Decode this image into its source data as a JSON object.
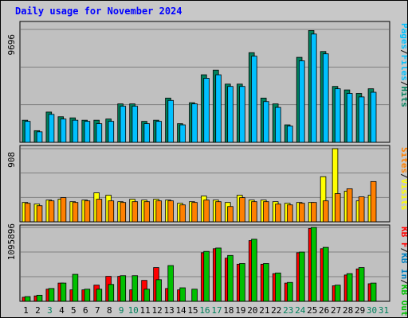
{
  "title": "Daily usage for November 2024",
  "colors": {
    "hits": "#00805c",
    "files": "#00c0ff",
    "pages": "#00c0ff",
    "visits": "#ffff00",
    "sites": "#ff8000",
    "kb_in": "#0080c0",
    "kb_out": "#00c000",
    "kb_f": "#ff0000",
    "sep": "#000000",
    "weekend": "#00805c",
    "weekday": "#000000"
  },
  "chart_data": [
    {
      "type": "bar",
      "name": "hits-files-pages",
      "y_max_label": "9696",
      "ylim": [
        0,
        9696
      ],
      "legend": [
        "Pages",
        "/",
        "Files",
        "/",
        "Hits"
      ],
      "categories": [
        "1",
        "2",
        "3",
        "4",
        "5",
        "6",
        "7",
        "8",
        "9",
        "10",
        "11",
        "12",
        "13",
        "14",
        "15",
        "16",
        "17",
        "18",
        "19",
        "20",
        "21",
        "22",
        "23",
        "24",
        "25",
        "26",
        "27",
        "28",
        "29",
        "30",
        "31"
      ],
      "series": [
        {
          "name": "Hits",
          "values": [
            1900,
            1000,
            2600,
            2200,
            2100,
            1900,
            1900,
            2000,
            3300,
            3300,
            1800,
            1900,
            3800,
            1600,
            3400,
            5800,
            6200,
            5000,
            5000,
            7700,
            3800,
            3300,
            1500,
            7300,
            9600,
            7800,
            4800,
            4500,
            4200,
            4600,
            0
          ]
        },
        {
          "name": "Files",
          "values": [
            1800,
            900,
            2400,
            2000,
            1900,
            1800,
            1600,
            1800,
            3100,
            3100,
            1600,
            1800,
            3600,
            1500,
            3300,
            5500,
            5800,
            4800,
            4800,
            7400,
            3500,
            3000,
            1400,
            7000,
            9300,
            7600,
            4600,
            4200,
            3900,
            4300,
            0
          ]
        }
      ]
    },
    {
      "type": "bar",
      "name": "visits-sites",
      "y_max_label": "908",
      "ylim": [
        0,
        908
      ],
      "legend": [
        "Sites",
        "/",
        "Visits"
      ],
      "categories": [
        "1",
        "2",
        "3",
        "4",
        "5",
        "6",
        "7",
        "8",
        "9",
        "10",
        "11",
        "12",
        "13",
        "14",
        "15",
        "16",
        "17",
        "18",
        "19",
        "20",
        "21",
        "22",
        "23",
        "24",
        "25",
        "26",
        "27",
        "28",
        "29",
        "30",
        "31"
      ],
      "series": [
        {
          "name": "Visits",
          "values": [
            240,
            220,
            270,
            280,
            250,
            270,
            360,
            330,
            250,
            280,
            270,
            280,
            270,
            230,
            250,
            320,
            270,
            240,
            330,
            270,
            270,
            250,
            230,
            240,
            240,
            560,
            908,
            380,
            260,
            330,
            0
          ]
        },
        {
          "name": "Sites",
          "values": [
            230,
            200,
            260,
            300,
            240,
            260,
            280,
            260,
            240,
            250,
            250,
            260,
            260,
            210,
            240,
            270,
            250,
            190,
            300,
            250,
            250,
            220,
            210,
            230,
            240,
            260,
            350,
            410,
            310,
            500,
            0
          ]
        }
      ]
    },
    {
      "type": "bar",
      "name": "kbytes",
      "y_max_label": "1095896",
      "ylim": [
        0,
        1095896
      ],
      "legend": [
        "KB F",
        "/",
        "KB In",
        "/",
        "KB Out"
      ],
      "categories": [
        "1",
        "2",
        "3",
        "4",
        "5",
        "6",
        "7",
        "8",
        "9",
        "10",
        "11",
        "12",
        "13",
        "14",
        "15",
        "16",
        "17",
        "18",
        "19",
        "20",
        "21",
        "22",
        "23",
        "24",
        "25",
        "26",
        "27",
        "28",
        "29",
        "30",
        "31"
      ],
      "series": [
        {
          "name": "KB F",
          "values": [
            60000,
            80000,
            180000,
            270000,
            170000,
            170000,
            240000,
            370000,
            370000,
            170000,
            310000,
            500000,
            190000,
            170000,
            0,
            720000,
            780000,
            640000,
            550000,
            900000,
            550000,
            410000,
            270000,
            720000,
            1080000,
            780000,
            230000,
            390000,
            480000,
            260000,
            0
          ]
        },
        {
          "name": "KB Out",
          "values": [
            70000,
            90000,
            190000,
            270000,
            400000,
            180000,
            180000,
            250000,
            380000,
            380000,
            180000,
            320000,
            530000,
            200000,
            180000,
            740000,
            790000,
            680000,
            560000,
            920000,
            560000,
            420000,
            280000,
            730000,
            1095896,
            800000,
            240000,
            410000,
            500000,
            270000,
            0
          ]
        }
      ]
    }
  ],
  "days": [
    {
      "label": "1",
      "weekend": false
    },
    {
      "label": "2",
      "weekend": false
    },
    {
      "label": "3",
      "weekend": true
    },
    {
      "label": "4",
      "weekend": false
    },
    {
      "label": "5",
      "weekend": false
    },
    {
      "label": "6",
      "weekend": false
    },
    {
      "label": "7",
      "weekend": false
    },
    {
      "label": "8",
      "weekend": false
    },
    {
      "label": "9",
      "weekend": true
    },
    {
      "label": "10",
      "weekend": true
    },
    {
      "label": "11",
      "weekend": false
    },
    {
      "label": "12",
      "weekend": false
    },
    {
      "label": "13",
      "weekend": false
    },
    {
      "label": "14",
      "weekend": false
    },
    {
      "label": "15",
      "weekend": false
    },
    {
      "label": "16",
      "weekend": true
    },
    {
      "label": "17",
      "weekend": true
    },
    {
      "label": "18",
      "weekend": false
    },
    {
      "label": "19",
      "weekend": false
    },
    {
      "label": "20",
      "weekend": false
    },
    {
      "label": "21",
      "weekend": false
    },
    {
      "label": "22",
      "weekend": false
    },
    {
      "label": "23",
      "weekend": true
    },
    {
      "label": "24",
      "weekend": true
    },
    {
      "label": "25",
      "weekend": false
    },
    {
      "label": "26",
      "weekend": false
    },
    {
      "label": "27",
      "weekend": false
    },
    {
      "label": "28",
      "weekend": false
    },
    {
      "label": "29",
      "weekend": false
    },
    {
      "label": "30",
      "weekend": true
    },
    {
      "label": "31",
      "weekend": true
    }
  ]
}
